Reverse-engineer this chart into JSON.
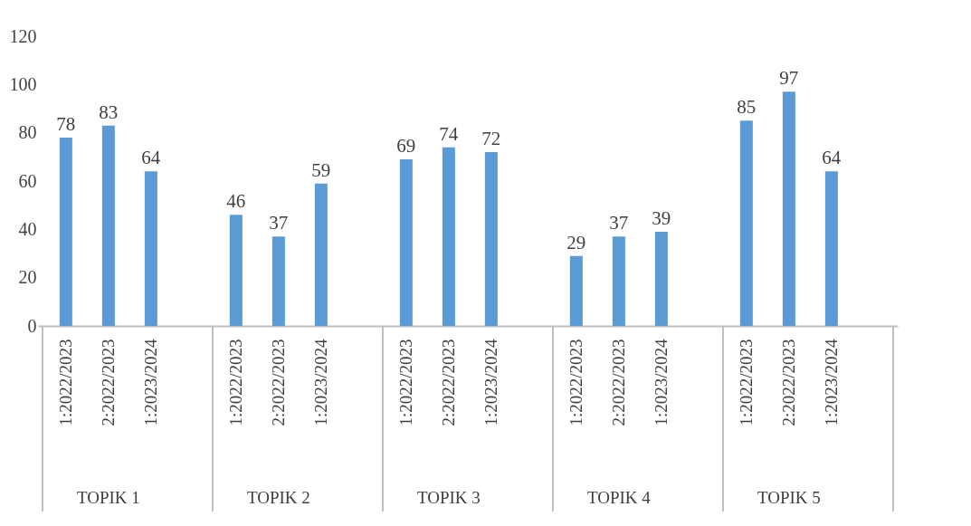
{
  "chart_data": {
    "type": "bar",
    "categories": [
      "1:2022/2023",
      "2:2022/2023",
      "1:2023/2024",
      "1:2022/2023",
      "2:2022/2023",
      "1:2023/2024",
      "1:2022/2023",
      "2:2022/2023",
      "1:2023/2024",
      "1:2022/2023",
      "2:2022/2023",
      "1:2023/2024",
      "1:2022/2023",
      "2:2022/2023",
      "1:2023/2024"
    ],
    "values": [
      78,
      83,
      64,
      46,
      37,
      59,
      69,
      74,
      72,
      29,
      37,
      39,
      85,
      97,
      64
    ],
    "color": "#5b9bd5",
    "ylim": [
      0,
      120
    ],
    "yticks": [
      0,
      20,
      40,
      60,
      80,
      100,
      120
    ],
    "data_labels": true,
    "grid": false,
    "annotations": [
      "TOPIK 1",
      "TOPIK 2",
      "TOPIK 3",
      "TOPIK 4",
      "TOPIK 5"
    ]
  }
}
